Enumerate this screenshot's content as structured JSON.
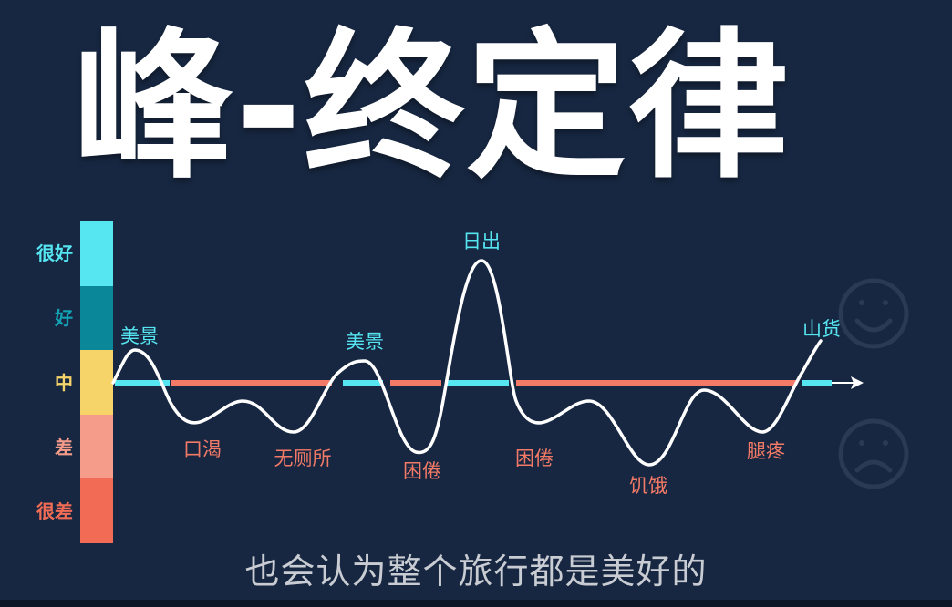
{
  "title": "峰-终定律",
  "scale": {
    "levels": [
      {
        "label": "很好",
        "color": "#55e6f2",
        "label_color": "#55e6f2"
      },
      {
        "label": "好",
        "color": "#0a8899",
        "label_color": "#13a2b3"
      },
      {
        "label": "中",
        "color": "#f7d46a",
        "label_color": "#f7d46a"
      },
      {
        "label": "差",
        "color": "#f59c8a",
        "label_color": "#f59c8a"
      },
      {
        "label": "很差",
        "color": "#f26c55",
        "label_color": "#f26c55"
      }
    ]
  },
  "events": [
    {
      "label": "美景",
      "color": "#55e6f2"
    },
    {
      "label": "口渴",
      "color": "#f27a66"
    },
    {
      "label": "无厕所",
      "color": "#f27a66"
    },
    {
      "label": "美景",
      "color": "#55e6f2"
    },
    {
      "label": "困倦",
      "color": "#f27a66"
    },
    {
      "label": "日出",
      "color": "#55e6f2"
    },
    {
      "label": "困倦",
      "color": "#f27a66"
    },
    {
      "label": "饥饿",
      "color": "#f27a66"
    },
    {
      "label": "腿疼",
      "color": "#f27a66"
    },
    {
      "label": "山货",
      "color": "#55e6f2"
    }
  ],
  "icons": {
    "happy": "smiley-face-icon",
    "sad": "sad-face-icon",
    "outline_color": "#2a3a55"
  },
  "colors": {
    "curve": "#ffffff",
    "axis": "#ffffff",
    "positive_line": "#55e6f2",
    "negative_line": "#f27a66"
  },
  "caption": "也会认为整个旅行都是美好的"
}
